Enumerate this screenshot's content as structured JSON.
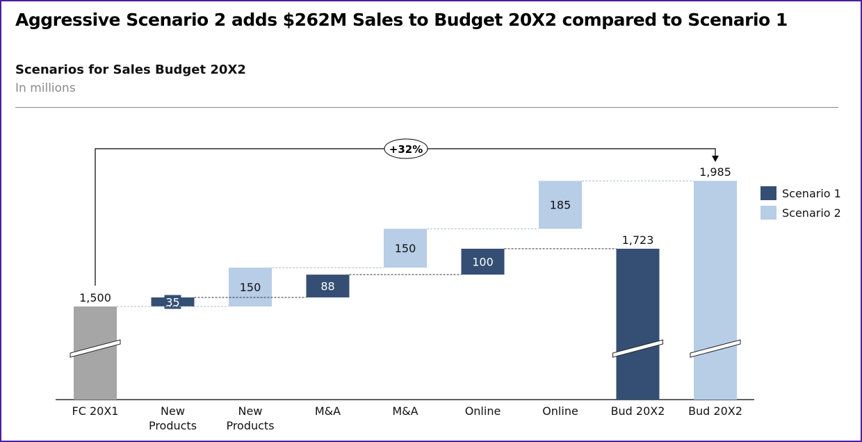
{
  "header": {
    "title": "Aggressive Scenario 2 adds $262M Sales to Budget 20X2 compared to Scenario 1",
    "subtitle": "Scenarios for Sales Budget 20X2",
    "units": "In millions"
  },
  "chart_data": {
    "type": "bar",
    "subtype": "waterfall",
    "title": "Scenarios for Sales Budget 20X2",
    "ylabel": "In millions",
    "colors": {
      "Start": "#a6a6a6",
      "Scenario 1": "#344f73",
      "Scenario 2": "#b8cde6"
    },
    "legend": {
      "position": "right",
      "entries": [
        "Scenario 1",
        "Scenario 2"
      ]
    },
    "annotation": {
      "label": "+32%",
      "from": "FC 20X1",
      "to": "Bud 20X2"
    },
    "axis_break": true,
    "bars": [
      {
        "category": "FC 20X1",
        "series": "Start",
        "kind": "total",
        "value": 1500,
        "label": "1,500"
      },
      {
        "category": "New Products",
        "series": "Scenario 1",
        "kind": "delta",
        "value": 35,
        "label": "35"
      },
      {
        "category": "New Products",
        "series": "Scenario 2",
        "kind": "delta",
        "value": 150,
        "label": "150"
      },
      {
        "category": "M&A",
        "series": "Scenario 1",
        "kind": "delta",
        "value": 88,
        "label": "88"
      },
      {
        "category": "M&A",
        "series": "Scenario 2",
        "kind": "delta",
        "value": 150,
        "label": "150"
      },
      {
        "category": "Online",
        "series": "Scenario 1",
        "kind": "delta",
        "value": 100,
        "label": "100"
      },
      {
        "category": "Online",
        "series": "Scenario 2",
        "kind": "delta",
        "value": 185,
        "label": "185"
      },
      {
        "category": "Bud 20X2",
        "series": "Scenario 1",
        "kind": "total",
        "value": 1723,
        "label": "1,723"
      },
      {
        "category": "Bud 20X2",
        "series": "Scenario 2",
        "kind": "total",
        "value": 1985,
        "label": "1,985"
      }
    ]
  }
}
